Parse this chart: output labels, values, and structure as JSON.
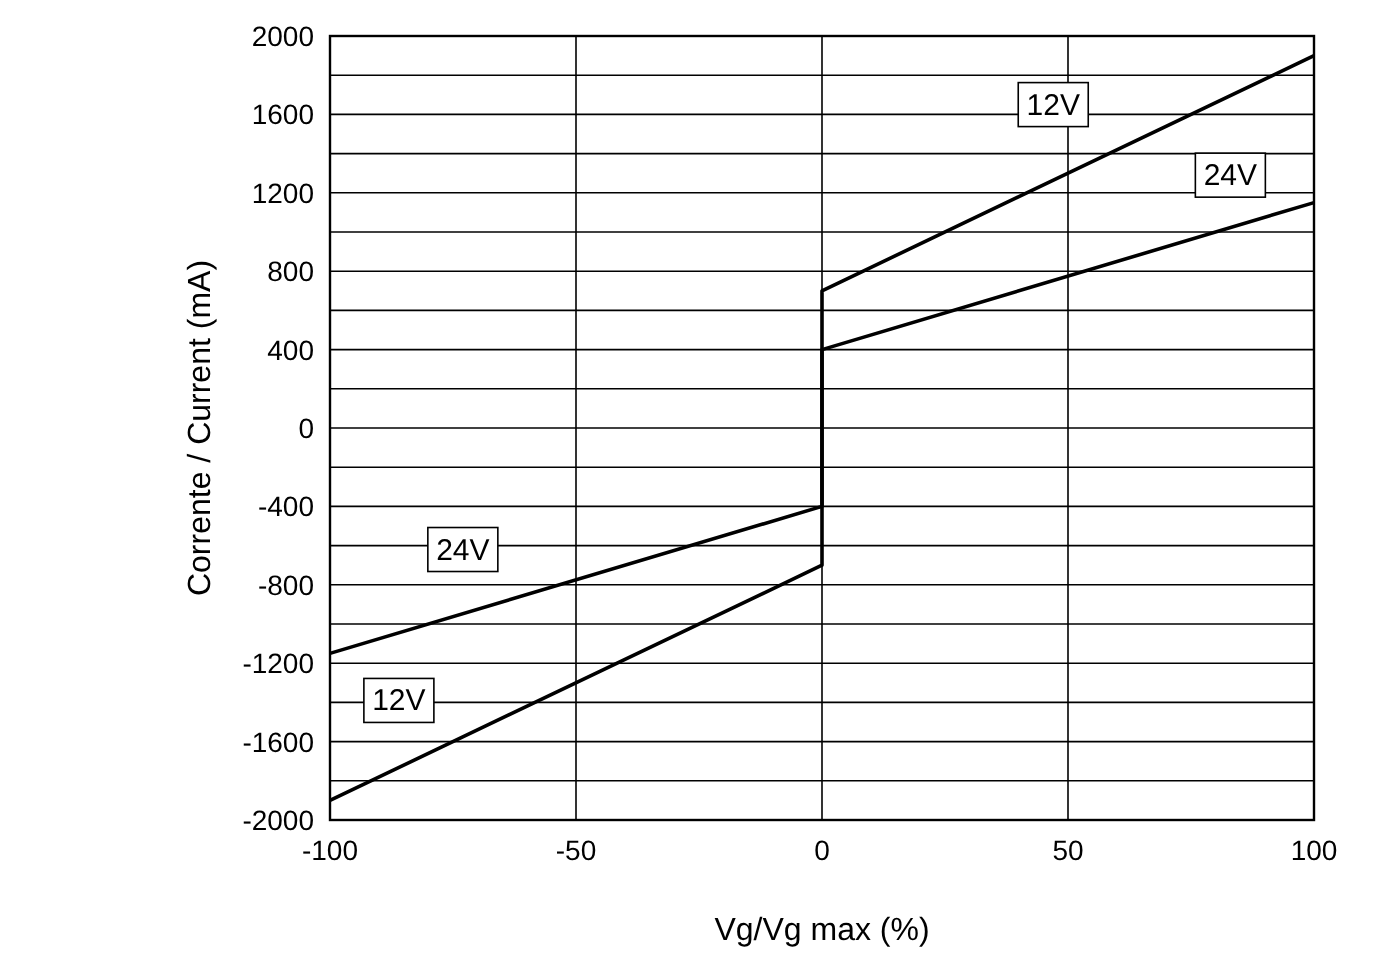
{
  "chart_data": {
    "type": "line",
    "xlabel": "Vg/Vg max (%)",
    "ylabel": "Corrente / Current (mA)",
    "xlim": [
      -100,
      100
    ],
    "xticks": [
      -100,
      -50,
      0,
      50,
      100
    ],
    "ylim": [
      -2000,
      2000
    ],
    "yticks": [
      -2000,
      {
        "value": -1800,
        "label": null
      },
      -1600,
      {
        "value": -1400,
        "label": null
      },
      -1200,
      {
        "value": -1000,
        "label": null
      },
      -800,
      {
        "value": -600,
        "label": null
      },
      -400,
      {
        "value": -200,
        "label": null
      },
      0,
      {
        "value": 200,
        "label": null
      },
      400,
      {
        "value": 600,
        "label": null
      },
      800,
      {
        "value": 1000,
        "label": null
      },
      1200,
      {
        "value": 1400,
        "label": null
      },
      1600,
      {
        "value": 1800,
        "label": null
      },
      2000
    ],
    "grid": true,
    "series": [
      {
        "color": "#000000",
        "x": [
          -100,
          0,
          0,
          100
        ],
        "values": [
          -1900,
          -700,
          700,
          1900
        ]
      },
      {
        "color": "#000000",
        "x": [
          -100,
          0,
          0,
          100
        ],
        "values": [
          -1150,
          -400,
          400,
          1150
        ]
      }
    ],
    "annotations": [
      {
        "text": "12V",
        "x": 47,
        "y": 1650
      },
      {
        "text": "24V",
        "x": 83,
        "y": 1290
      },
      {
        "text": "24V",
        "x": -73,
        "y": -620
      },
      {
        "text": "12V",
        "x": -86,
        "y": -1390
      }
    ]
  }
}
